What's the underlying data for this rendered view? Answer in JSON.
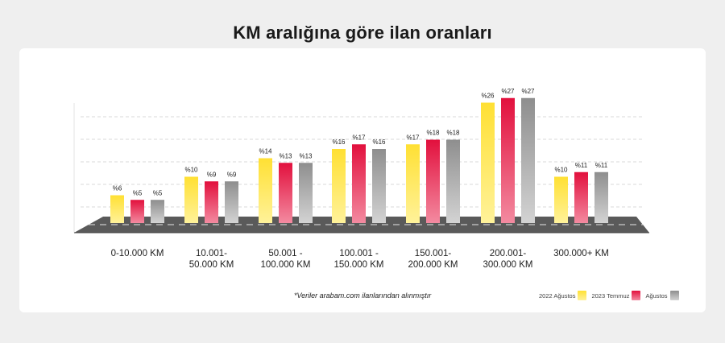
{
  "header": {
    "title": "KM aralığına göre ilan oranları"
  },
  "note": "*Veriler arabam.com ilanlarından alınmıştır",
  "colors": {
    "yellow_top": "#FFE033",
    "yellow_bottom": "#FFF29A",
    "red_top": "#E2103D",
    "red_bottom": "#F38AA0",
    "gray_top": "#8E8E8E",
    "gray_bottom": "#D3D3D3",
    "floor": "#5a5a5a",
    "grid": "#cccccc"
  },
  "chart_data": {
    "type": "bar",
    "title": "KM aralığına göre ilan oranları",
    "categories": [
      "0-10.000 KM",
      "10.001-\n50.000 KM",
      "50.001 -\n100.000 KM",
      "100.001 -\n150.000 KM",
      "150.001-\n200.000 KM",
      "200.001-\n300.000 KM",
      "300.000+ KM"
    ],
    "series": [
      {
        "name": "2022 Ağustos",
        "values": [
          6,
          10,
          14,
          16,
          17,
          26,
          10
        ],
        "labels": [
          "%6",
          "%10",
          "%14",
          "%16",
          "%17",
          "%26",
          "%10"
        ]
      },
      {
        "name": "2023 Temmuz",
        "values": [
          5,
          9,
          13,
          17,
          18,
          27,
          11
        ],
        "labels": [
          "%5",
          "%9",
          "%13",
          "%17",
          "%18",
          "%27",
          "%11"
        ]
      },
      {
        "name": "Ağustos",
        "values": [
          5,
          9,
          13,
          16,
          18,
          27,
          11
        ],
        "labels": [
          "%5",
          "%9",
          "%13",
          "%16",
          "%18",
          "%27",
          "%11"
        ]
      }
    ],
    "ylim": [
      0,
      30
    ],
    "grid": true,
    "legend_position": "bottom-right"
  }
}
